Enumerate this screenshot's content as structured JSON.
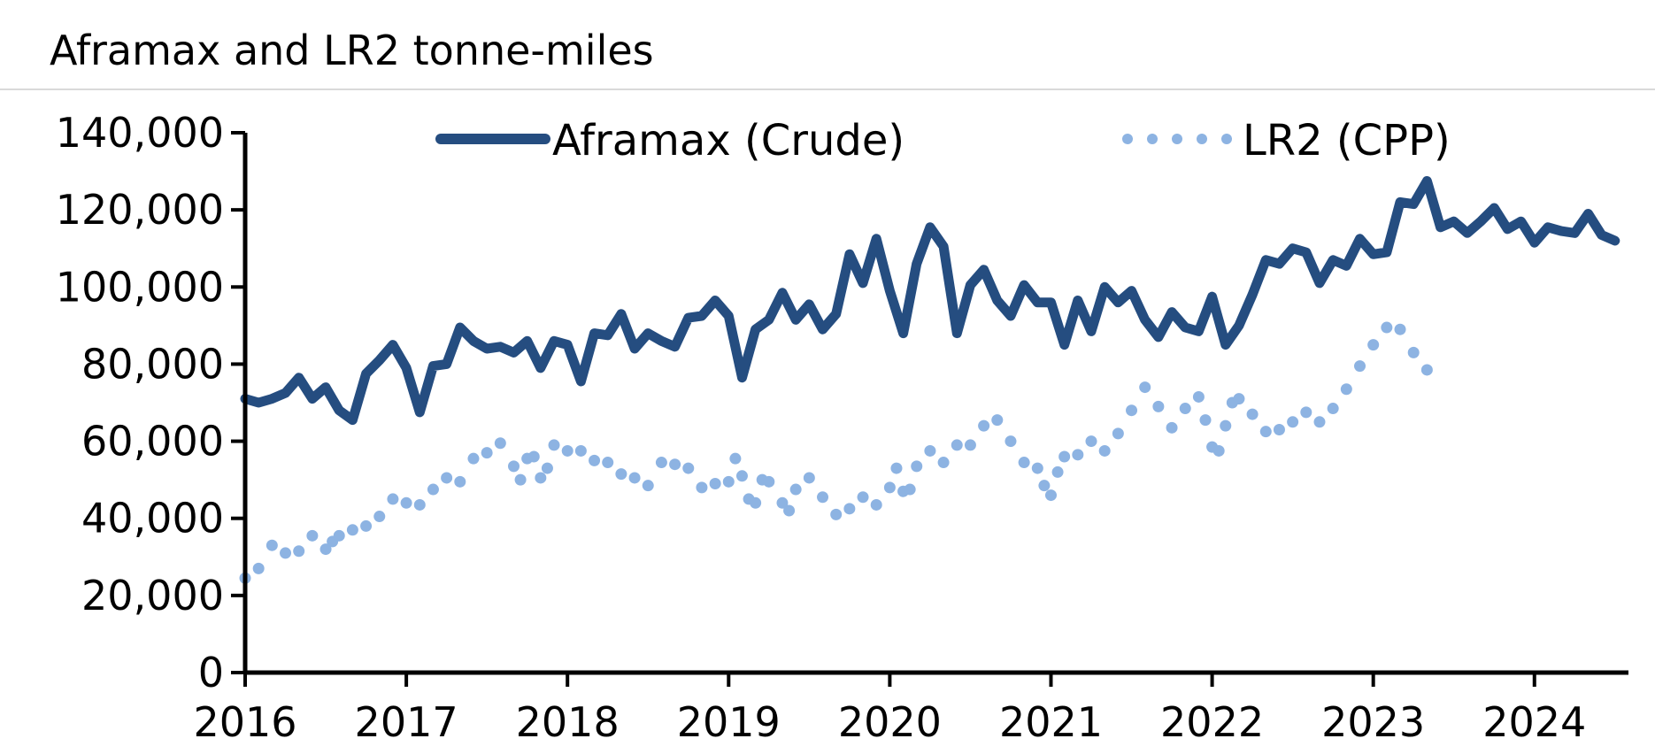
{
  "title": "Aframax and LR2 tonne-miles",
  "chart_data": {
    "type": "line",
    "title": "Aframax and LR2 tonne-miles",
    "xlabel": "",
    "ylabel": "",
    "x_start": "2016-01",
    "x_ticks": [
      "2016",
      "2017",
      "2018",
      "2019",
      "2020",
      "2021",
      "2022",
      "2023",
      "2024"
    ],
    "y_ticks": [
      "0",
      "20,000",
      "40,000",
      "60,000",
      "80,000",
      "100,000",
      "120,000",
      "140,000"
    ],
    "ylim": [
      0,
      140000
    ],
    "legend_position": "top",
    "series": [
      {
        "name": "Aframax (Crude)",
        "color": "#254d80",
        "style": "solid",
        "values": [
          71000,
          70000,
          71000,
          72500,
          76500,
          71000,
          74000,
          68000,
          65500,
          77500,
          81000,
          85000,
          79000,
          67500,
          79500,
          80000,
          89500,
          86000,
          84000,
          84500,
          83000,
          86000,
          79000,
          86000,
          85000,
          75500,
          88000,
          87500,
          93000,
          84000,
          88000,
          86000,
          84500,
          92000,
          92500,
          96500,
          92500,
          76500,
          89000,
          91500,
          98500,
          91500,
          95500,
          89000,
          93000,
          108500,
          101000,
          112500,
          99000,
          88000,
          106000,
          115500,
          110500,
          88000,
          100500,
          104500,
          96500,
          92500,
          100500,
          96000,
          96000,
          85000,
          96500,
          88500,
          100000,
          96000,
          99000,
          91500,
          87000,
          93500,
          89500,
          88500,
          97500,
          85000,
          90000,
          98000,
          107000,
          106000,
          110000,
          109000,
          101000,
          107000,
          105500,
          112500,
          108500,
          109000,
          122000,
          121500,
          127500,
          115500,
          117000,
          114000,
          117000,
          120500,
          115000,
          117000,
          111500,
          115500,
          114500,
          114000,
          119000,
          113500,
          112000
        ]
      },
      {
        "name": "LR2 (CPP)",
        "color": "#8db3e2",
        "style": "dotted",
        "points": [
          [
            0,
            24500
          ],
          [
            1,
            27000
          ],
          [
            2,
            33000
          ],
          [
            3,
            31000
          ],
          [
            4,
            31500
          ],
          [
            5,
            35500
          ],
          [
            6,
            32000
          ],
          [
            6.5,
            34000
          ],
          [
            7,
            35500
          ],
          [
            8,
            37000
          ],
          [
            9,
            38000
          ],
          [
            10,
            40500
          ],
          [
            11,
            45000
          ],
          [
            12,
            44000
          ],
          [
            13,
            43500
          ],
          [
            14,
            47500
          ],
          [
            15,
            50500
          ],
          [
            16,
            49500
          ],
          [
            17,
            55500
          ],
          [
            18,
            57000
          ],
          [
            19,
            59500
          ],
          [
            20,
            53500
          ],
          [
            20.5,
            50000
          ],
          [
            21,
            55500
          ],
          [
            21.5,
            56000
          ],
          [
            22,
            50500
          ],
          [
            22.5,
            53000
          ],
          [
            23,
            59000
          ],
          [
            24,
            57500
          ],
          [
            25,
            57500
          ],
          [
            26,
            55000
          ],
          [
            27,
            54500
          ],
          [
            28,
            51500
          ],
          [
            29,
            50500
          ],
          [
            30,
            48500
          ],
          [
            31,
            54500
          ],
          [
            32,
            54000
          ],
          [
            33,
            53000
          ],
          [
            34,
            48000
          ],
          [
            35,
            49000
          ],
          [
            36,
            49500
          ],
          [
            36.5,
            55500
          ],
          [
            37,
            51000
          ],
          [
            37.5,
            45000
          ],
          [
            38,
            44000
          ],
          [
            38.5,
            50000
          ],
          [
            39,
            49500
          ],
          [
            40,
            44000
          ],
          [
            40.5,
            42000
          ],
          [
            41,
            47500
          ],
          [
            42,
            50500
          ],
          [
            43,
            45500
          ],
          [
            44,
            41000
          ],
          [
            45,
            42500
          ],
          [
            46,
            45500
          ],
          [
            47,
            43500
          ],
          [
            48,
            48000
          ],
          [
            48.5,
            53000
          ],
          [
            49,
            47000
          ],
          [
            49.5,
            47500
          ],
          [
            50,
            53500
          ],
          [
            51,
            57500
          ],
          [
            52,
            54500
          ],
          [
            53,
            59000
          ],
          [
            54,
            59000
          ],
          [
            55,
            64000
          ],
          [
            56,
            65500
          ],
          [
            57,
            60000
          ],
          [
            58,
            54500
          ],
          [
            59,
            53000
          ],
          [
            59.5,
            48500
          ],
          [
            60,
            46000
          ],
          [
            60.5,
            52000
          ],
          [
            61,
            56000
          ],
          [
            62,
            56500
          ],
          [
            63,
            60000
          ],
          [
            64,
            57500
          ],
          [
            65,
            62000
          ],
          [
            66,
            68000
          ],
          [
            67,
            74000
          ],
          [
            68,
            69000
          ],
          [
            69,
            63500
          ],
          [
            70,
            68500
          ],
          [
            71,
            71500
          ],
          [
            71.5,
            65500
          ],
          [
            72,
            58500
          ],
          [
            72.5,
            57500
          ],
          [
            73,
            64000
          ],
          [
            73.5,
            70000
          ],
          [
            74,
            71000
          ],
          [
            75,
            67000
          ],
          [
            76,
            62500
          ],
          [
            77,
            63000
          ],
          [
            78,
            65000
          ],
          [
            79,
            67500
          ],
          [
            80,
            65000
          ],
          [
            81,
            68500
          ],
          [
            82,
            73500
          ],
          [
            83,
            79500
          ],
          [
            84,
            85000
          ],
          [
            85,
            89500
          ],
          [
            86,
            89000
          ],
          [
            87,
            83000
          ],
          [
            88,
            78500
          ]
        ]
      }
    ]
  }
}
